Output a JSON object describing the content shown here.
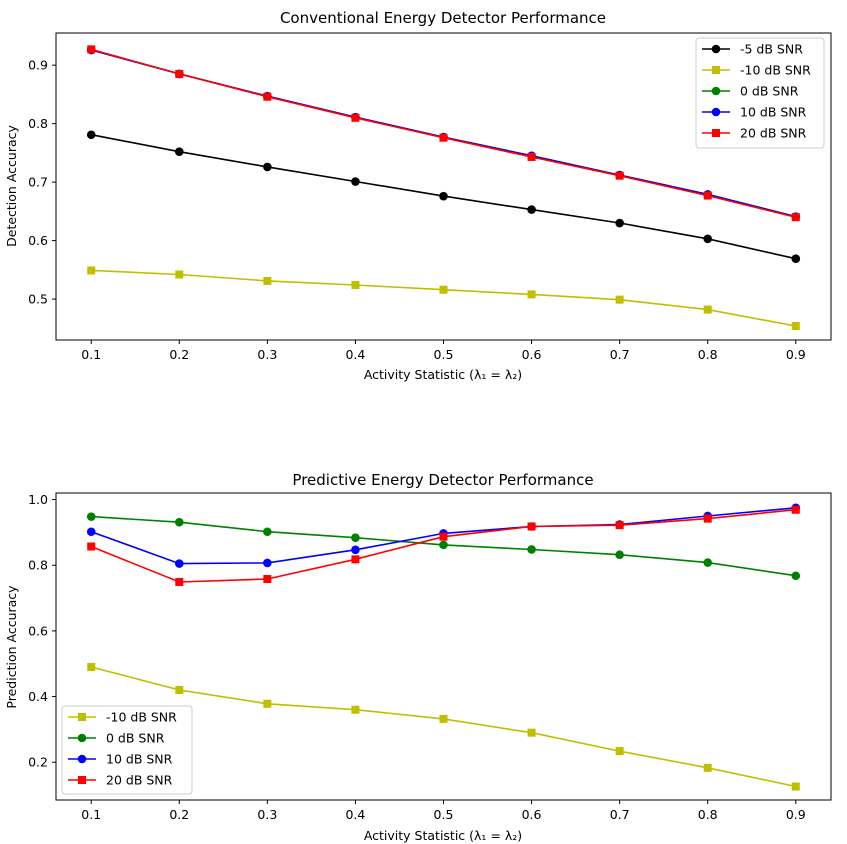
{
  "chart_data": [
    {
      "type": "line",
      "title": "Conventional Energy Detector Performance",
      "xlabel": "Activity Statistic (λ₁ = λ₂)",
      "ylabel": "Detection Accuracy",
      "x": [
        0.1,
        0.2,
        0.3,
        0.4,
        0.5,
        0.6,
        0.7,
        0.8,
        0.9
      ],
      "xlim": [
        0.06,
        0.94
      ],
      "ylim": [
        0.43,
        0.955
      ],
      "xticks": [
        "0.1",
        "0.2",
        "0.3",
        "0.4",
        "0.5",
        "0.6",
        "0.7",
        "0.8",
        "0.9"
      ],
      "yticks": [
        "0.5",
        "0.6",
        "0.7",
        "0.8",
        "0.9"
      ],
      "ytick_values": [
        0.5,
        0.6,
        0.7,
        0.8,
        0.9
      ],
      "grid": false,
      "legend_position": "top-right",
      "series": [
        {
          "name": "-5 dB SNR",
          "color": "#000000",
          "marker": "circle",
          "values": [
            0.781,
            0.752,
            0.726,
            0.701,
            0.676,
            0.653,
            0.63,
            0.603,
            0.569
          ]
        },
        {
          "name": "-10 dB SNR",
          "color": "#bfbf00",
          "marker": "square",
          "values": [
            0.549,
            0.542,
            0.531,
            0.524,
            0.516,
            0.508,
            0.499,
            0.482,
            0.454
          ]
        },
        {
          "name": "0 dB SNR",
          "color": "#008000",
          "marker": "circle",
          "values": [
            0.926,
            0.885,
            0.847,
            0.811,
            0.777,
            0.745,
            0.712,
            0.679,
            0.641
          ]
        },
        {
          "name": "10 dB SNR",
          "color": "#0000ff",
          "marker": "circle",
          "values": [
            0.926,
            0.885,
            0.847,
            0.811,
            0.777,
            0.745,
            0.712,
            0.679,
            0.641
          ]
        },
        {
          "name": "20 dB SNR",
          "color": "#ff0000",
          "marker": "square",
          "values": [
            0.927,
            0.885,
            0.846,
            0.81,
            0.776,
            0.743,
            0.711,
            0.677,
            0.64
          ]
        }
      ]
    },
    {
      "type": "line",
      "title": "Predictive Energy Detector Performance",
      "xlabel": "Activity Statistic (λ₁ = λ₂)",
      "ylabel": "Prediction Accuracy",
      "x": [
        0.1,
        0.2,
        0.3,
        0.4,
        0.5,
        0.6,
        0.7,
        0.8,
        0.9
      ],
      "xlim": [
        0.06,
        0.94
      ],
      "ylim": [
        0.085,
        1.02
      ],
      "xticks": [
        "0.1",
        "0.2",
        "0.3",
        "0.4",
        "0.5",
        "0.6",
        "0.7",
        "0.8",
        "0.9"
      ],
      "yticks": [
        "0.2",
        "0.4",
        "0.6",
        "0.8",
        "1.0"
      ],
      "ytick_values": [
        0.2,
        0.4,
        0.6,
        0.8,
        1.0
      ],
      "grid": false,
      "legend_position": "bottom-left",
      "series": [
        {
          "name": "-10 dB SNR",
          "color": "#bfbf00",
          "marker": "square",
          "values": [
            0.49,
            0.42,
            0.378,
            0.36,
            0.332,
            0.29,
            0.234,
            0.183,
            0.126
          ]
        },
        {
          "name": "0 dB SNR",
          "color": "#008000",
          "marker": "circle",
          "values": [
            0.948,
            0.931,
            0.902,
            0.884,
            0.862,
            0.848,
            0.832,
            0.808,
            0.768
          ]
        },
        {
          "name": "10 dB SNR",
          "color": "#0000ff",
          "marker": "circle",
          "values": [
            0.902,
            0.805,
            0.807,
            0.847,
            0.897,
            0.918,
            0.924,
            0.95,
            0.975
          ]
        },
        {
          "name": "20 dB SNR",
          "color": "#ff0000",
          "marker": "square",
          "values": [
            0.857,
            0.749,
            0.758,
            0.818,
            0.887,
            0.918,
            0.922,
            0.942,
            0.969
          ]
        }
      ]
    }
  ]
}
